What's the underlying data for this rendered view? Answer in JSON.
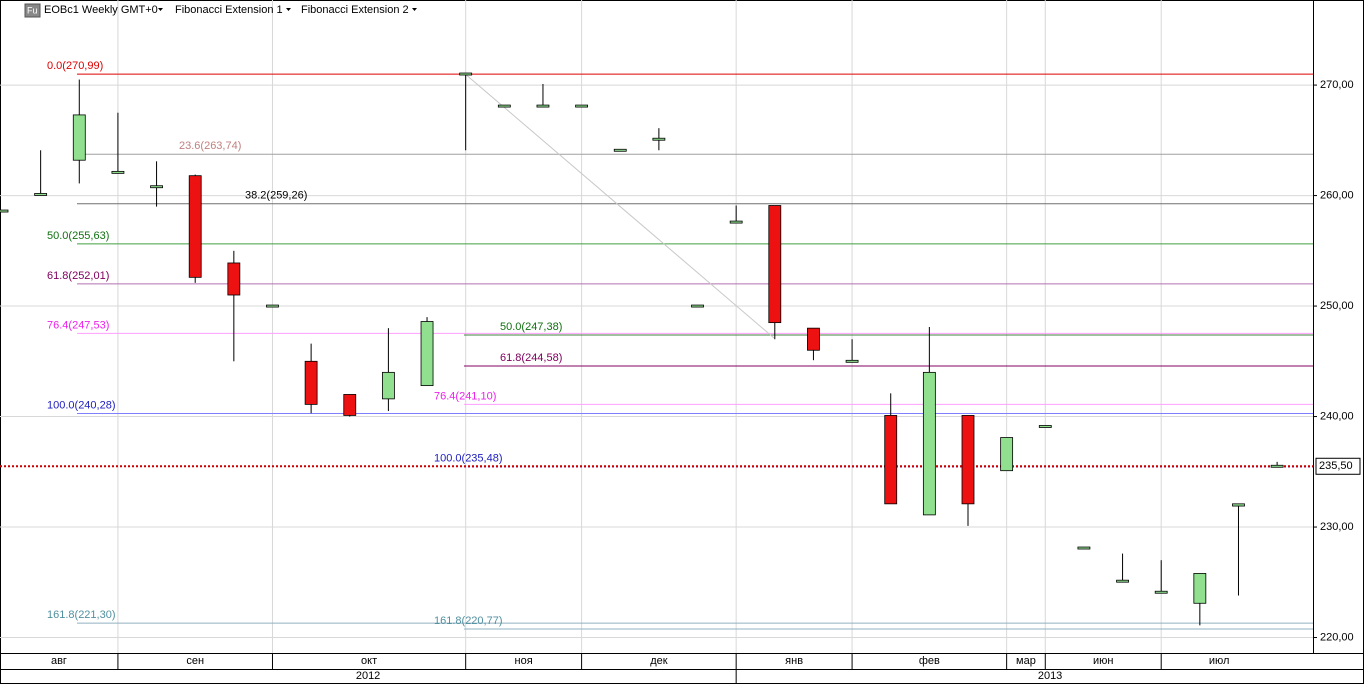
{
  "header": {
    "icon": "Fu",
    "symbol": "EOBc1 Weekly GMT+0",
    "indicators": [
      "Fibonacci Extension 1",
      "Fibonacci Extension 2"
    ]
  },
  "chart_data": {
    "type": "candlestick",
    "categories": [
      "авг",
      null,
      null,
      "сен",
      null,
      null,
      null,
      "окт",
      null,
      null,
      null,
      null,
      "ноя",
      null,
      null,
      "дек",
      null,
      null,
      null,
      "янв",
      null,
      null,
      "фев",
      null,
      null,
      null,
      "мар",
      "июн",
      null,
      null,
      "июл",
      null,
      null,
      null
    ],
    "years": [
      "2012",
      null,
      null,
      null,
      null,
      null,
      null,
      null,
      null,
      null,
      null,
      null,
      null,
      null,
      null,
      null,
      null,
      null,
      null,
      "2013",
      null,
      null,
      null,
      null,
      null,
      null,
      null,
      null,
      null,
      null,
      null,
      null,
      null,
      null
    ],
    "open": [
      258.6,
      260.1,
      263.2,
      262.1,
      260.8,
      261.8,
      253.9,
      250.0,
      245.0,
      242.0,
      241.6,
      242.8,
      271.0,
      268.1,
      268.1,
      268.1,
      264.1,
      265.1,
      250.0,
      257.6,
      259.1,
      248.0,
      245.0,
      240.1,
      231.1,
      240.1,
      235.1,
      239.1,
      228.1,
      225.1,
      224.1,
      223.1,
      231.9,
      235.5
    ],
    "high": [
      258.6,
      264.1,
      270.5,
      267.5,
      263.1,
      261.9,
      255.0,
      250.0,
      246.6,
      242.0,
      248.0,
      249.0,
      271.0,
      268.1,
      270.1,
      268.1,
      264.1,
      266.1,
      250.0,
      259.1,
      259.1,
      248.0,
      247.0,
      242.1,
      248.1,
      240.1,
      238.1,
      239.1,
      228.1,
      227.6,
      227.0,
      225.8,
      232.1,
      235.9
    ],
    "low": [
      258.6,
      260.1,
      261.1,
      262.0,
      259.0,
      252.1,
      245.0,
      250.0,
      240.3,
      240.0,
      240.5,
      242.8,
      264.1,
      268.1,
      268.1,
      268.1,
      264.1,
      264.1,
      250.0,
      257.6,
      247.0,
      245.1,
      245.0,
      232.1,
      231.1,
      230.1,
      235.1,
      239.1,
      228.1,
      225.1,
      224.1,
      221.1,
      223.8,
      235.5
    ],
    "close": [
      258.6,
      260.1,
      267.3,
      262.1,
      260.8,
      252.6,
      251.0,
      250.0,
      241.1,
      240.1,
      244.0,
      248.6,
      271.0,
      268.1,
      268.1,
      268.1,
      264.1,
      265.1,
      250.0,
      257.6,
      248.5,
      246.0,
      245.0,
      232.1,
      244.0,
      232.1,
      238.1,
      239.1,
      228.1,
      225.1,
      224.1,
      225.8,
      232.1,
      235.5
    ],
    "up_color": "#90e090",
    "down_color": "#ee1111",
    "ylim": [
      218.6,
      277.7
    ],
    "yticks": [
      {
        "value": 220,
        "label": "220,00"
      },
      {
        "value": 230,
        "label": "230,00"
      },
      {
        "value": 240,
        "label": "240,00"
      },
      {
        "value": 250,
        "label": "250,00"
      },
      {
        "value": 260,
        "label": "260,00"
      },
      {
        "value": 270,
        "label": "270,00"
      }
    ],
    "grid": true,
    "last_price": {
      "value": 235.5,
      "label": "235,50",
      "color": "#cc0000"
    },
    "fib_sets": [
      {
        "name": "Fibonacci Extension 1",
        "levels": [
          {
            "value": 270.99,
            "label": "0.0(270,99)",
            "color": "#dd0000",
            "label_color": "#dd0000"
          },
          {
            "value": 263.74,
            "label": "23.6(263,74)",
            "color": "#a0a0a0",
            "label_color": "#c08080"
          },
          {
            "value": 259.26,
            "label": "38.2(259,26)",
            "color": "#707070",
            "label_color": "#000000"
          },
          {
            "value": 255.63,
            "label": "50.0(255,63)",
            "color": "#40a040",
            "label_color": "#107010"
          },
          {
            "value": 252.01,
            "label": "61.8(252,01)",
            "color": "#b070b0",
            "label_color": "#800060"
          },
          {
            "value": 247.53,
            "label": "76.4(247,53)",
            "color": "#ffa0ff",
            "label_color": "#ee20ee"
          },
          {
            "value": 240.28,
            "label": "100.0(240,28)",
            "color": "#8080ff",
            "label_color": "#2020c0"
          },
          {
            "value": 221.3,
            "label": "161.8(221,30)",
            "color": "#90b0c0",
            "label_color": "#5090a0"
          }
        ]
      },
      {
        "name": "Fibonacci Extension 2",
        "levels": [
          {
            "value": 247.38,
            "label": "50.0(247,38)",
            "color": "#408040",
            "label_color": "#107010"
          },
          {
            "value": 244.58,
            "label": "61.8(244,58)",
            "color": "#800060",
            "label_color": "#800060"
          },
          {
            "value": 241.1,
            "label": "76.4(241,10)",
            "color": "#ffa0ff",
            "label_color": "#ee20ee"
          },
          {
            "value": 235.48,
            "label": "100.0(235,48)",
            "color": "#8020c0",
            "label_color": "#2020c0"
          },
          {
            "value": 220.77,
            "label": "161.8(220,77)",
            "color": "#90b0c0",
            "label_color": "#5090a0"
          }
        ]
      }
    ]
  }
}
